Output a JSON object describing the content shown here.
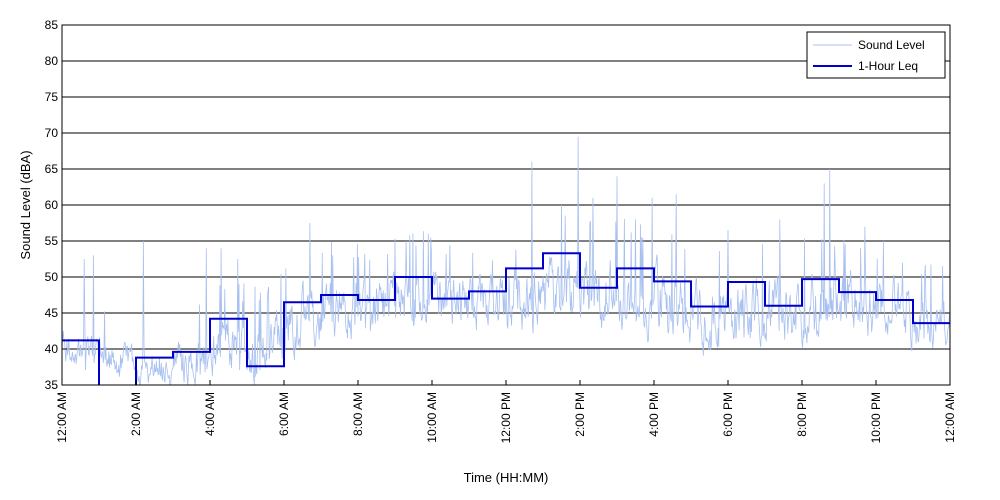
{
  "chart_data": {
    "type": "line",
    "title": "",
    "xlabel": "Time (HH:MM)",
    "ylabel": "Sound Level (dBA)",
    "xlim": [
      0,
      24
    ],
    "ylim": [
      35,
      85
    ],
    "x_unit": "hours since 12:00 AM",
    "x_ticks": [
      0,
      2,
      4,
      6,
      8,
      10,
      12,
      14,
      16,
      18,
      20,
      22,
      24
    ],
    "x_tick_labels": [
      "12:00 AM",
      "2:00 AM",
      "4:00 AM",
      "6:00 AM",
      "8:00 AM",
      "10:00 AM",
      "12:00 PM",
      "2:00 PM",
      "4:00 PM",
      "6:00 PM",
      "8:00 PM",
      "10:00 PM",
      "12:00 AM"
    ],
    "y_ticks": [
      35,
      40,
      45,
      50,
      55,
      60,
      65,
      70,
      75,
      80,
      85
    ],
    "grid": "horizontal",
    "legend_position": "top-right",
    "series": [
      {
        "name": "Sound Level",
        "color": "#a8c0f0",
        "style": "thin-line",
        "envelope_hourly": {
          "hours": [
            0,
            1,
            2,
            3,
            4,
            5,
            6,
            7,
            8,
            9,
            10,
            11,
            12,
            13,
            14,
            15,
            16,
            17,
            18,
            19,
            20,
            21,
            22,
            23
          ],
          "typical_min": [
            36,
            34,
            33,
            33,
            34,
            33,
            38,
            39,
            39,
            41,
            40,
            40,
            40,
            41,
            40,
            40,
            38,
            36,
            38,
            38,
            39,
            40,
            39,
            37
          ],
          "typical_max": [
            44,
            42,
            42,
            43,
            47,
            46,
            51,
            53,
            52,
            54,
            53,
            52,
            54,
            56,
            56,
            55,
            54,
            51,
            53,
            52,
            53,
            53,
            52,
            49
          ]
        },
        "peaks": [
          {
            "x": 0.6,
            "y": 52.5
          },
          {
            "x": 0.85,
            "y": 53
          },
          {
            "x": 2.2,
            "y": 55
          },
          {
            "x": 3.9,
            "y": 54
          },
          {
            "x": 4.3,
            "y": 54
          },
          {
            "x": 4.75,
            "y": 52.5
          },
          {
            "x": 6.7,
            "y": 57.5
          },
          {
            "x": 9.3,
            "y": 55
          },
          {
            "x": 9.9,
            "y": 56
          },
          {
            "x": 12.7,
            "y": 66
          },
          {
            "x": 13.5,
            "y": 60
          },
          {
            "x": 13.95,
            "y": 69.5
          },
          {
            "x": 14.35,
            "y": 61
          },
          {
            "x": 15.0,
            "y": 64
          },
          {
            "x": 15.5,
            "y": 58
          },
          {
            "x": 15.95,
            "y": 61
          },
          {
            "x": 16.6,
            "y": 61.5
          },
          {
            "x": 18.0,
            "y": 56.5
          },
          {
            "x": 19.4,
            "y": 58
          },
          {
            "x": 20.6,
            "y": 63
          },
          {
            "x": 20.75,
            "y": 65
          },
          {
            "x": 21.7,
            "y": 57
          },
          {
            "x": 22.2,
            "y": 55
          },
          {
            "x": 23.8,
            "y": 51.5
          }
        ]
      },
      {
        "name": "1-Hour Leq",
        "color": "#0000cc",
        "style": "step",
        "hour_start": [
          0,
          1,
          2,
          3,
          4,
          5,
          6,
          7,
          8,
          9,
          10,
          11,
          12,
          13,
          14,
          15,
          16,
          17,
          18,
          19,
          20,
          21,
          22,
          23
        ],
        "values": [
          41.2,
          34.5,
          38.8,
          39.6,
          44.2,
          37.6,
          46.5,
          47.5,
          46.8,
          50.0,
          47.0,
          48.0,
          51.2,
          53.3,
          48.5,
          51.2,
          49.4,
          45.9,
          49.3,
          46.0,
          49.7,
          47.9,
          46.8,
          43.6
        ]
      }
    ]
  }
}
